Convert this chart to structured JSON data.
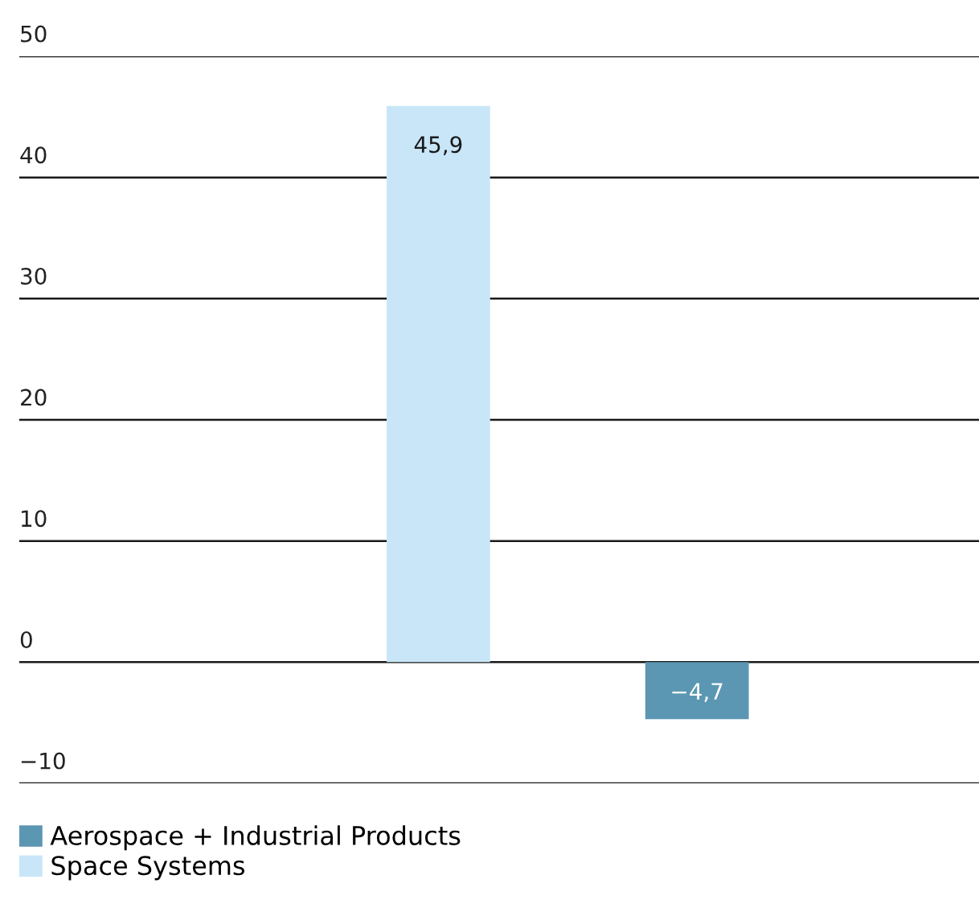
{
  "chart_data": {
    "type": "bar",
    "categories": [
      null,
      null
    ],
    "series": [
      {
        "name": "Aerospace + Industrial Products",
        "color": "#5b97b2",
        "values": [
          null,
          -4.7
        ],
        "value_labels": [
          null,
          "−4,7"
        ]
      },
      {
        "name": "Space Systems",
        "color": "#c8e6f8",
        "values": [
          45.9,
          null
        ],
        "value_labels": [
          "45,9",
          null
        ]
      }
    ],
    "ylim": [
      -10,
      50
    ],
    "yticks": [
      {
        "value": -10,
        "label": "−10"
      },
      0,
      10,
      20,
      30,
      40,
      50
    ],
    "grid": "y",
    "legend": "bottom left"
  }
}
